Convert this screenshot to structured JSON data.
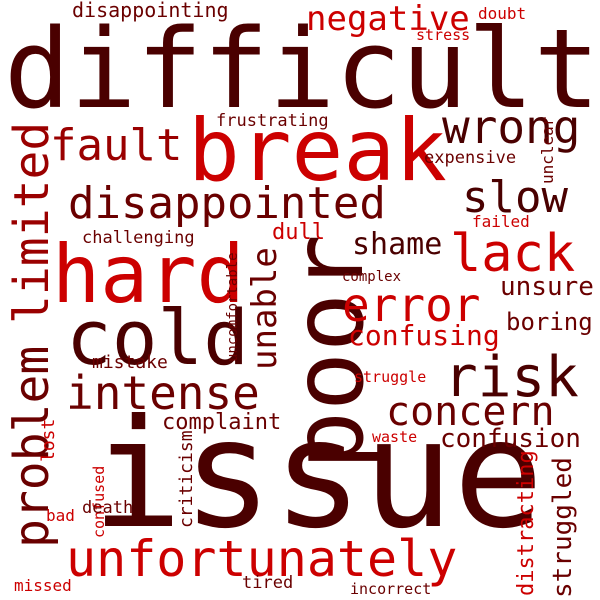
{
  "words": {
    "difficult": "difficult",
    "issue": "issue",
    "poor": "poor",
    "break": "break",
    "hard": "hard",
    "cold": "cold",
    "problem": "problem",
    "limited": "limited",
    "unfortunately": "unfortunately",
    "risk": "risk",
    "wrong": "wrong",
    "disappointed": "disappointed",
    "lack": "lack",
    "error": "error",
    "intense": "intense",
    "concern": "concern",
    "fault": "fault",
    "negative": "negative",
    "slow": "slow",
    "shame": "shame",
    "unable": "unable",
    "confusing": "confusing",
    "confusion": "confusion",
    "struggled": "struggled",
    "distracting": "distracting",
    "unsure": "unsure",
    "boring": "boring",
    "complaint": "complaint",
    "dull": "dull",
    "disappointing": "disappointing",
    "frustrating": "frustrating",
    "expensive": "expensive",
    "challenging": "challenging",
    "uncomfortable": "uncomfortable",
    "mistake": "mistake",
    "struggle": "struggle",
    "complex": "complex",
    "failed": "failed",
    "unclear": "unclear",
    "doubt": "doubt",
    "stress": "stress",
    "lost": "lost",
    "confused": "confused",
    "criticism": "criticism",
    "death": "death",
    "bad": "bad",
    "waste": "waste",
    "missed": "missed",
    "tired": "tired",
    "incorrect": "incorrect"
  },
  "palette": {
    "dark": "#4a0000",
    "maroon": "#6a0000",
    "mid": "#9a0000",
    "red": "#cc0000",
    "bright": "#e00000"
  }
}
